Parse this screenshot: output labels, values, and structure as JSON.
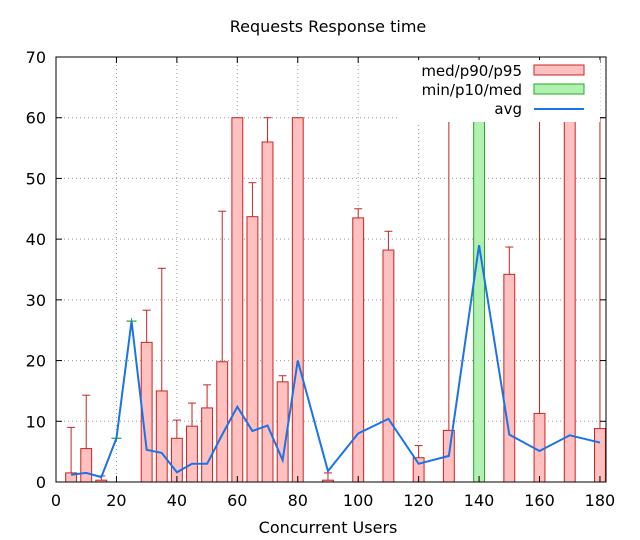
{
  "chart_data": {
    "type": "bar",
    "title": "Requests Response time",
    "xlabel": "Concurrent Users",
    "ylabel": "",
    "xlim": [
      0,
      182
    ],
    "ylim": [
      0,
      70
    ],
    "xticks": [
      0,
      20,
      40,
      60,
      80,
      100,
      120,
      140,
      160,
      180
    ],
    "yticks": [
      0,
      10,
      20,
      30,
      40,
      50,
      60,
      70
    ],
    "grid": true,
    "legend_position": "top-right",
    "legend": [
      {
        "label": "med/p90/p95",
        "kind": "bar",
        "fill": "#ffc0c0",
        "stroke": "#cc2222"
      },
      {
        "label": "min/p10/med",
        "kind": "bar",
        "fill": "#b0f0b0",
        "stroke": "#22aa22"
      },
      {
        "label": "avg",
        "kind": "line",
        "stroke": "#1a73e8"
      }
    ],
    "colors": {
      "red_fill": "#ffc0c0",
      "red_stroke": "#cc2222",
      "green_fill": "#b0f0b0",
      "green_stroke": "#22aa22",
      "avg_line": "#1a73e8"
    },
    "series": [
      {
        "name": "med/p90/p95",
        "points": [
          {
            "x": 5,
            "med": 1.5,
            "p90": 1.5,
            "p95": 9
          },
          {
            "x": 10,
            "med": 5.5,
            "p90": 5.5,
            "p95": 14.3
          },
          {
            "x": 15,
            "med": 0.3,
            "p90": 0.3,
            "p95": 1
          },
          {
            "x": 30,
            "med": 23,
            "p90": 23,
            "p95": 28.3
          },
          {
            "x": 35,
            "med": 15,
            "p90": 15,
            "p95": 35.2
          },
          {
            "x": 40,
            "med": 7.2,
            "p90": 7.2,
            "p95": 10.2
          },
          {
            "x": 45,
            "med": 9.2,
            "p90": 9.2,
            "p95": 13
          },
          {
            "x": 50,
            "med": 12.2,
            "p90": 12.2,
            "p95": 16
          },
          {
            "x": 55,
            "med": 19.8,
            "p90": 19.8,
            "p95": 44.6
          },
          {
            "x": 60,
            "med": 60,
            "p90": 60,
            "p95": 60
          },
          {
            "x": 65,
            "med": 43.7,
            "p90": 43.7,
            "p95": 49.3
          },
          {
            "x": 70,
            "med": 56,
            "p90": 56,
            "p95": 60
          },
          {
            "x": 75,
            "med": 16.5,
            "p90": 16.5,
            "p95": 17.5
          },
          {
            "x": 80,
            "med": 60,
            "p90": 60,
            "p95": 60
          },
          {
            "x": 90,
            "med": 0.3,
            "p90": 0.3,
            "p95": 1.5
          },
          {
            "x": 100,
            "med": 43.5,
            "p90": 43.5,
            "p95": 45
          },
          {
            "x": 110,
            "med": 38.2,
            "p90": 38.2,
            "p95": 41.3
          },
          {
            "x": 120,
            "med": 4,
            "p90": 4,
            "p95": 6
          },
          {
            "x": 130,
            "med": 8.5,
            "p90": 8.5,
            "p95": 60
          },
          {
            "x": 150,
            "med": 34.2,
            "p90": 34.2,
            "p95": 38.7
          },
          {
            "x": 160,
            "med": 11.3,
            "p90": 11.3,
            "p95": 60
          },
          {
            "x": 170,
            "med": 60,
            "p90": 60,
            "p95": 60
          },
          {
            "x": 180,
            "med": 8.8,
            "p90": 8.8,
            "p95": 60
          }
        ]
      },
      {
        "name": "min/p10/med",
        "points": [
          {
            "x": 20,
            "min": 7.2,
            "p10": 7.2,
            "med": 7.2
          },
          {
            "x": 25,
            "min": 26.5,
            "p10": 26.5,
            "med": 26.5
          },
          {
            "x": 140,
            "min": 60,
            "p10": 60,
            "med": 60
          }
        ]
      },
      {
        "name": "avg",
        "x": [
          5,
          10,
          15,
          20,
          25,
          30,
          35,
          40,
          45,
          50,
          55,
          60,
          65,
          70,
          75,
          80,
          90,
          100,
          110,
          120,
          130,
          140,
          150,
          160,
          170,
          180
        ],
        "values": [
          1.2,
          1.5,
          0.8,
          7.2,
          26.5,
          5.3,
          4.8,
          1.6,
          3,
          3,
          7.8,
          12.4,
          8.4,
          9.3,
          3.6,
          20,
          1.8,
          8,
          10.4,
          3,
          4.3,
          39,
          7.8,
          5.1,
          7.7,
          6.5
        ]
      }
    ]
  }
}
